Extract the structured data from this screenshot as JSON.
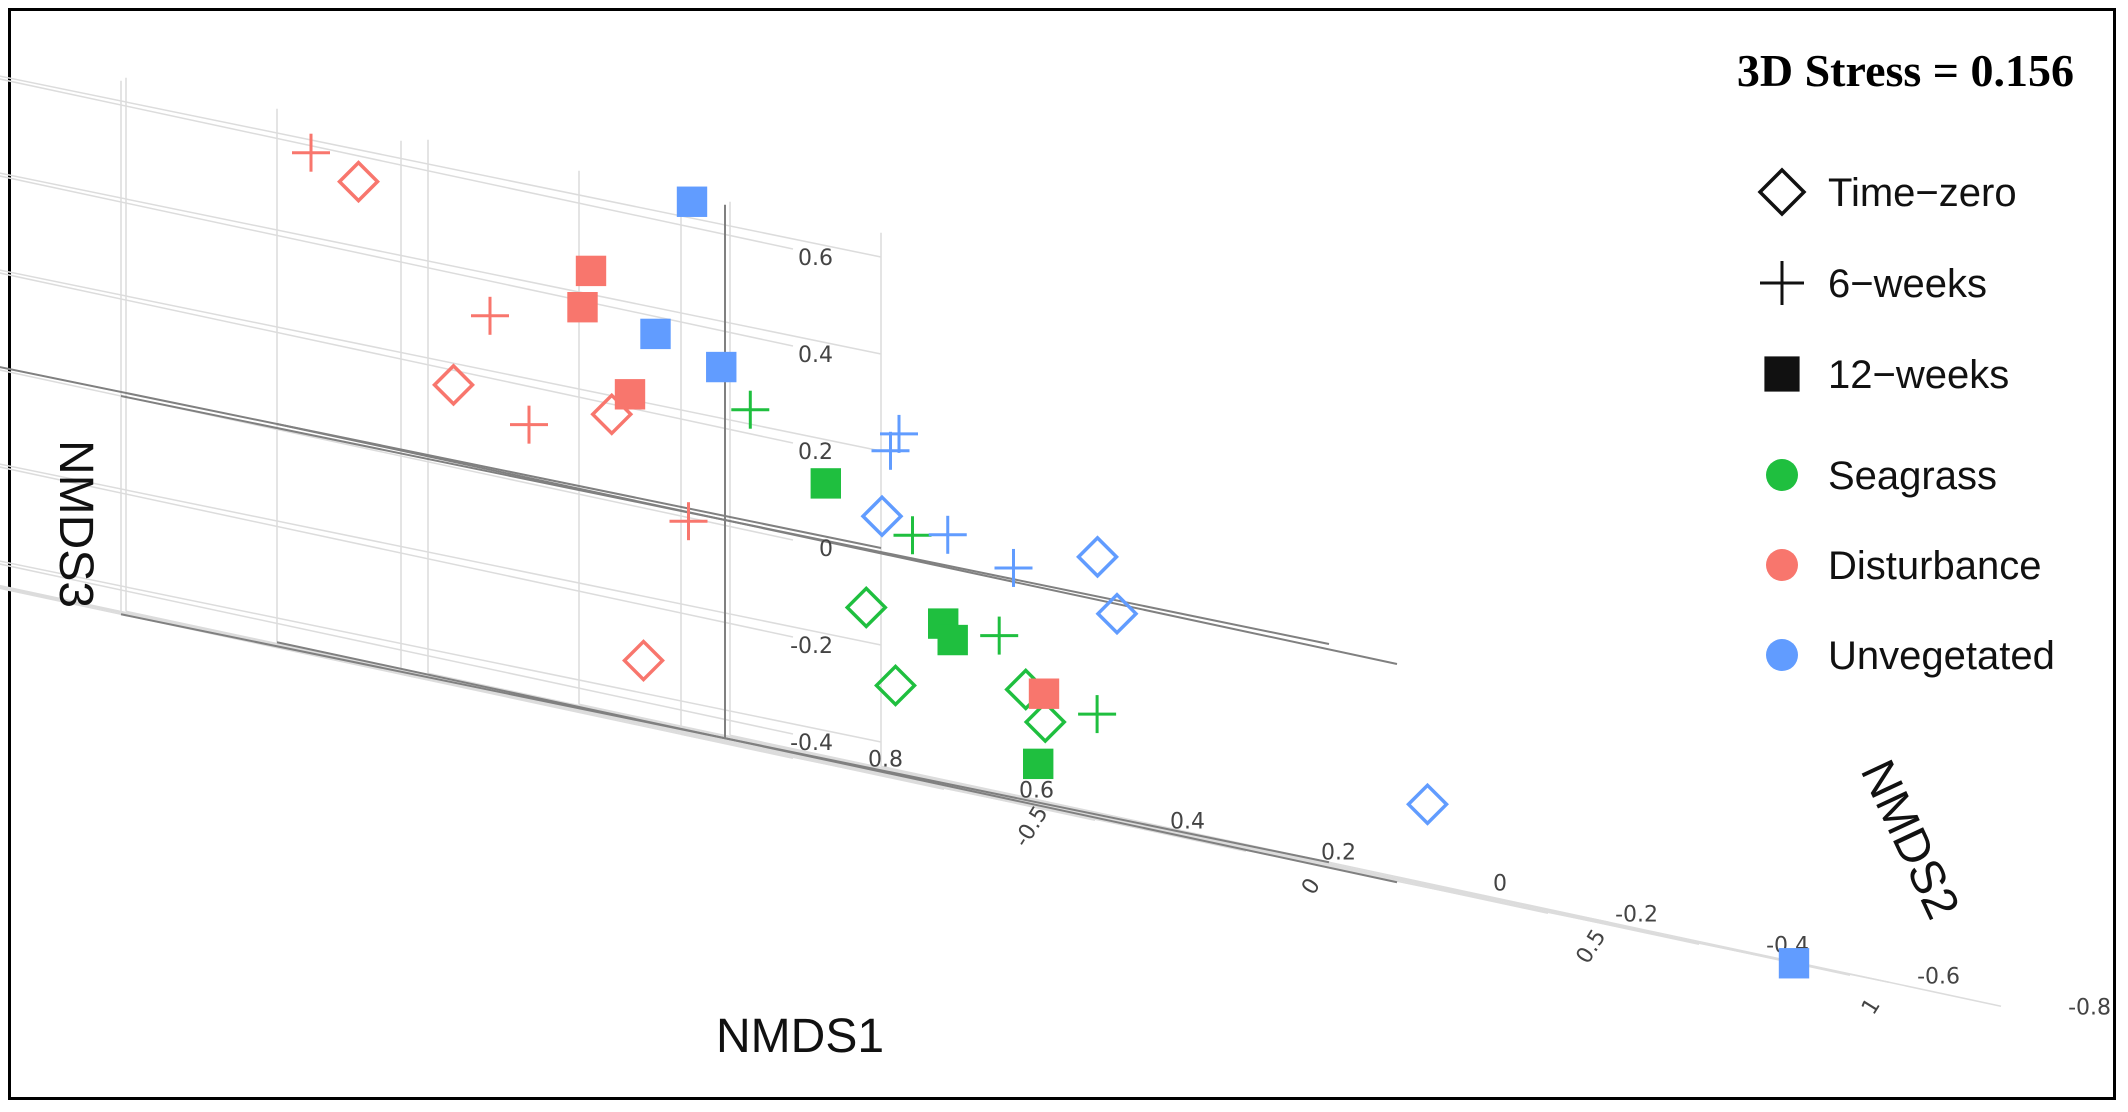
{
  "chart_data": {
    "type": "scatter",
    "subtype": "3d-scatter",
    "annotation": "3D Stress = 0.156",
    "xlabel": "NMDS1",
    "ylabel": "NMDS2",
    "zlabel": "NMDS3",
    "xlim": [
      -0.8,
      1.2
    ],
    "ylim": [
      -0.8,
      0.8
    ],
    "zlim": [
      -0.45,
      0.65
    ],
    "x_ticks": [
      "-0.5",
      "0",
      "0.5",
      "1"
    ],
    "y_ticks": [
      "0.8",
      "0.6",
      "0.4",
      "0.2",
      "0",
      "-0.2",
      "-0.4",
      "-0.6",
      "-0.8"
    ],
    "z_ticks": [
      "0.6",
      "0.4",
      "0.2",
      "0",
      "-0.2",
      "-0.4"
    ],
    "grid": true,
    "legend_position": "right",
    "legend": {
      "shapes": [
        {
          "label": "Time−zero",
          "shape": "diamond"
        },
        {
          "label": "6−weeks",
          "shape": "cross"
        },
        {
          "label": "12−weeks",
          "shape": "square"
        }
      ],
      "colors": [
        {
          "label": "Seagrass",
          "color": "#1fbf3f"
        },
        {
          "label": "Disturbance",
          "color": "#f8766d"
        },
        {
          "label": "Unvegetated",
          "color": "#619cff"
        }
      ]
    },
    "series": [
      {
        "habitat": "Seagrass",
        "color": "#1fbf3f",
        "points": [
          {
            "time": "Time-zero",
            "x": 0.05,
            "y": -0.15,
            "z": -0.12
          },
          {
            "time": "Time-zero",
            "x": -0.1,
            "y": -0.3,
            "z": -0.27
          },
          {
            "time": "Time-zero",
            "x": 0.1,
            "y": -0.35,
            "z": -0.28
          },
          {
            "time": "Time-zero",
            "x": 0.2,
            "y": -0.25,
            "z": -0.22
          },
          {
            "time": "6-weeks",
            "x": 0.18,
            "y": 0.1,
            "z": 0.24
          },
          {
            "time": "6-weeks",
            "x": 0.2,
            "y": -0.1,
            "z": 0.05
          },
          {
            "time": "6-weeks",
            "x": 0.22,
            "y": -0.2,
            "z": -0.12
          },
          {
            "time": "6-weeks",
            "x": 0.26,
            "y": -0.3,
            "z": -0.24
          },
          {
            "time": "12-weeks",
            "x": 0.18,
            "y": 0.0,
            "z": 0.12
          },
          {
            "time": "12-weeks",
            "x": 0.12,
            "y": -0.2,
            "z": -0.12
          },
          {
            "time": "12-weeks",
            "x": 0.11,
            "y": -0.22,
            "z": -0.15
          },
          {
            "time": "12-weeks",
            "x": 0.02,
            "y": -0.4,
            "z": -0.37
          }
        ]
      },
      {
        "habitat": "Disturbance",
        "color": "#f8766d",
        "points": [
          {
            "time": "Time-zero",
            "x": -0.25,
            "y": 0.3,
            "z": 0.54
          },
          {
            "time": "Time-zero",
            "x": -0.35,
            "y": 0.1,
            "z": 0.16
          },
          {
            "time": "Time-zero",
            "x": 0.0,
            "y": 0.15,
            "z": 0.17
          },
          {
            "time": "Time-zero",
            "x": -0.55,
            "y": -0.3,
            "z": -0.33
          },
          {
            "time": "6-weeks",
            "x": -0.2,
            "y": 0.4,
            "z": 0.58
          },
          {
            "time": "6-weeks",
            "x": -0.15,
            "y": 0.2,
            "z": 0.32
          },
          {
            "time": "6-weeks",
            "x": -0.35,
            "y": 0.0,
            "z": 0.11
          },
          {
            "time": "6-weeks",
            "x": -0.2,
            "y": -0.1,
            "z": -0.02
          },
          {
            "time": "12-weeks",
            "x": 0.3,
            "y": 0.4,
            "z": 0.46
          },
          {
            "time": "12-weeks",
            "x": 0.15,
            "y": 0.3,
            "z": 0.38
          },
          {
            "time": "12-weeks",
            "x": 0.1,
            "y": 0.2,
            "z": 0.22
          },
          {
            "time": "12-weeks",
            "x": 0.3,
            "y": -0.2,
            "z": -0.22
          }
        ]
      },
      {
        "habitat": "Unvegetated",
        "color": "#619cff",
        "points": [
          {
            "time": "Time-zero",
            "x": 0.55,
            "y": 0.2,
            "z": 0.08
          },
          {
            "time": "Time-zero",
            "x": 0.8,
            "y": 0.1,
            "z": 0.09
          },
          {
            "time": "Time-zero",
            "x": 0.7,
            "y": 0.0,
            "z": -0.02
          },
          {
            "time": "Time-zero",
            "x": 0.85,
            "y": -0.3,
            "z": -0.28
          },
          {
            "time": "6-weeks",
            "x": 0.85,
            "y": 0.4,
            "z": 0.26
          },
          {
            "time": "6-weeks",
            "x": 0.7,
            "y": 0.3,
            "z": 0.22
          },
          {
            "time": "6-weeks",
            "x": 0.6,
            "y": 0.15,
            "z": 0.07
          },
          {
            "time": "6-weeks",
            "x": 0.65,
            "y": 0.1,
            "z": 0.03
          },
          {
            "time": "12-weeks",
            "x": 0.75,
            "y": 0.6,
            "z": 0.65
          },
          {
            "time": "12-weeks",
            "x": 0.55,
            "y": 0.5,
            "z": 0.36
          },
          {
            "time": "12-weeks",
            "x": 0.6,
            "y": 0.45,
            "z": 0.32
          },
          {
            "time": "12-weeks",
            "x": 1.1,
            "y": -0.6,
            "z": -0.45
          }
        ]
      }
    ]
  }
}
